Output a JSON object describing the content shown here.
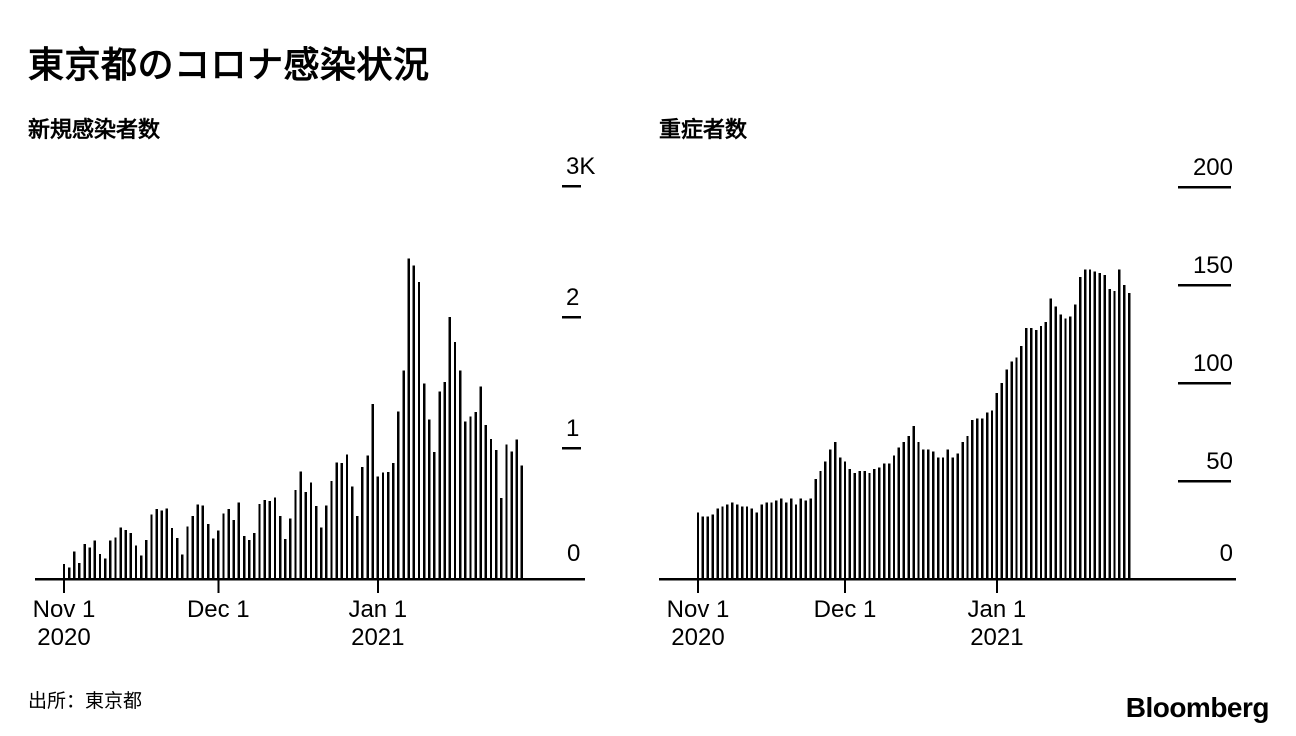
{
  "header": {
    "title": "東京都のコロナ感染状況"
  },
  "footer": {
    "source": "出所：東京都",
    "brand": "Bloomberg"
  },
  "colors": {
    "bars": "#000000",
    "axis": "#000000",
    "text": "#000000",
    "background": "#ffffff"
  },
  "chart_data": [
    {
      "type": "bar",
      "title": "新規感染者数",
      "x_start": "Nov 1 2020",
      "x_end": "Jan 29 2021",
      "ylim": [
        0,
        3000
      ],
      "grid": false,
      "legend": "none",
      "y_ticks": [
        {
          "value": 3000,
          "label": "3K"
        },
        {
          "value": 2000,
          "label": "2"
        },
        {
          "value": 1000,
          "label": "1"
        },
        {
          "value": 0,
          "label": "0"
        }
      ],
      "x_ticks": [
        {
          "day_offset": 0,
          "label_lines": [
            "Nov 1",
            "2020"
          ]
        },
        {
          "day_offset": 30,
          "label_lines": [
            "Dec 1"
          ]
        },
        {
          "day_offset": 61,
          "label_lines": [
            "Jan 1",
            "2021"
          ]
        }
      ],
      "values": [
        116,
        87,
        209,
        122,
        269,
        242,
        294,
        189,
        157,
        293,
        317,
        393,
        374,
        352,
        255,
        180,
        298,
        493,
        534,
        522,
        539,
        391,
        314,
        186,
        401,
        481,
        570,
        561,
        418,
        311,
        372,
        500,
        533,
        449,
        584,
        327,
        299,
        352,
        572,
        602,
        595,
        621,
        480,
        305,
        460,
        678,
        822,
        664,
        736,
        556,
        392,
        563,
        748,
        888,
        884,
        949,
        708,
        481,
        856,
        944,
        1337,
        783,
        814,
        816,
        884,
        1278,
        1591,
        2447,
        2392,
        2268,
        1494,
        1219,
        970,
        1433,
        1502,
        2001,
        1809,
        1592,
        1204,
        1240,
        1274,
        1471,
        1175,
        1070,
        986,
        618,
        1026,
        973,
        1064,
        868
      ]
    },
    {
      "type": "bar",
      "title": "重症者数",
      "x_start": "Nov 1 2020",
      "x_end": "Jan 28 2021",
      "ylim": [
        0,
        200
      ],
      "grid": false,
      "legend": "none",
      "y_ticks": [
        {
          "value": 200,
          "label": "200"
        },
        {
          "value": 150,
          "label": "150"
        },
        {
          "value": 100,
          "label": "100"
        },
        {
          "value": 50,
          "label": "50"
        },
        {
          "value": 0,
          "label": "0"
        }
      ],
      "x_ticks": [
        {
          "day_offset": 0,
          "label_lines": [
            "Nov 1",
            "2020"
          ]
        },
        {
          "day_offset": 30,
          "label_lines": [
            "Dec 1"
          ]
        },
        {
          "day_offset": 61,
          "label_lines": [
            "Jan 1",
            "2021"
          ]
        }
      ],
      "values": [
        34,
        32,
        32,
        33,
        36,
        37,
        38,
        39,
        38,
        37,
        37,
        36,
        34,
        38,
        39,
        39,
        40,
        41,
        39,
        41,
        38,
        41,
        40,
        41,
        51,
        55,
        60,
        66,
        70,
        62,
        60,
        56,
        54,
        55,
        55,
        54,
        56,
        57,
        59,
        59,
        63,
        67,
        70,
        73,
        78,
        70,
        66,
        66,
        65,
        62,
        62,
        66,
        62,
        64,
        70,
        73,
        81,
        82,
        82,
        85,
        86,
        95,
        100,
        107,
        111,
        113,
        119,
        128,
        128,
        127,
        129,
        131,
        143,
        139,
        135,
        133,
        134,
        140,
        154,
        158,
        158,
        157,
        156,
        155,
        148,
        147,
        158,
        150,
        146
      ]
    }
  ]
}
